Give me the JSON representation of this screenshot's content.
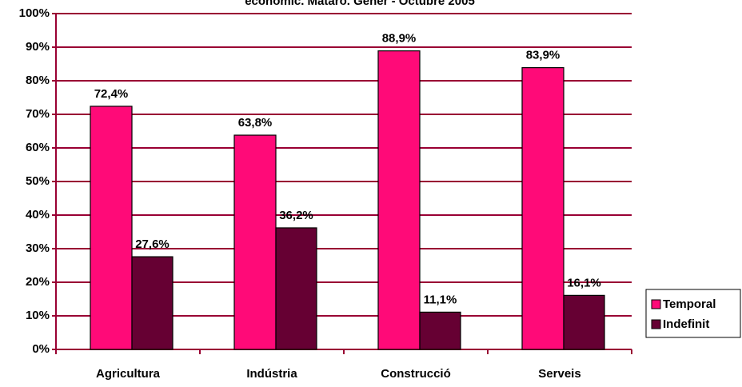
{
  "chart_data": {
    "type": "bar",
    "title": "econòmic. Mataró. Gener - Octubre 2005",
    "categories": [
      "Agricultura",
      "Indústria",
      "Construcció",
      "Serveis"
    ],
    "series": [
      {
        "name": "Temporal",
        "color": "#ff0a78",
        "values": [
          72.4,
          63.8,
          88.9,
          83.9
        ],
        "value_labels": [
          "72,4%",
          "63,8%",
          "88,9%",
          "83,9%"
        ]
      },
      {
        "name": "Indefinit",
        "color": "#660033",
        "values": [
          27.6,
          36.2,
          11.1,
          16.1
        ],
        "value_labels": [
          "27,6%",
          "36,2%",
          "11,1%",
          "16,1%"
        ]
      }
    ],
    "ylim": [
      0,
      100
    ],
    "yticks": [
      {
        "value": 0,
        "label": "0%"
      },
      {
        "value": 10,
        "label": "10%"
      },
      {
        "value": 20,
        "label": "20%"
      },
      {
        "value": 30,
        "label": "30%"
      },
      {
        "value": 40,
        "label": "40%"
      },
      {
        "value": 50,
        "label": "50%"
      },
      {
        "value": 60,
        "label": "60%"
      },
      {
        "value": 70,
        "label": "70%"
      },
      {
        "value": 80,
        "label": "80%"
      },
      {
        "value": 90,
        "label": "90%"
      },
      {
        "value": 100,
        "label": "100%"
      }
    ],
    "grid": true,
    "legend": "right"
  }
}
